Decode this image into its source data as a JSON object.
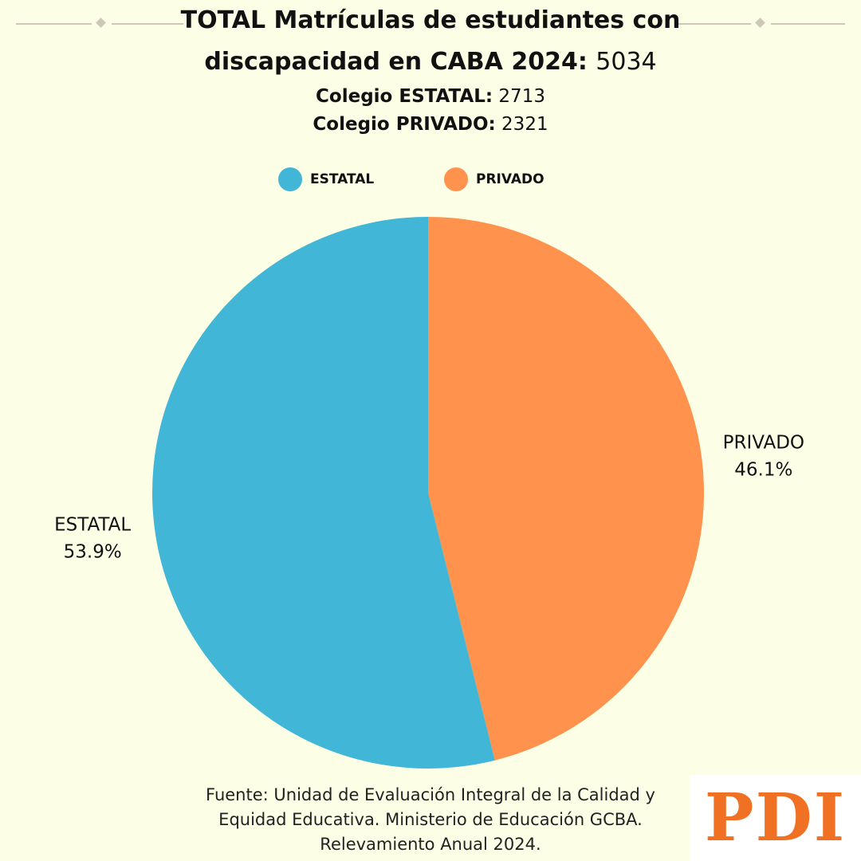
{
  "title": {
    "line1": "TOTAL Matrículas de estudiantes con",
    "line2_bold": "discapacidad en CABA 2024:",
    "total": "5034"
  },
  "subtitles": {
    "estatal_label": "Colegio ESTATAL:",
    "estatal_value": "2713",
    "privado_label": "Colegio PRIVADO:",
    "privado_value": "2321"
  },
  "legend": [
    {
      "label": "ESTATAL",
      "color": "#42b6d6"
    },
    {
      "label": "PRIVADO",
      "color": "#ff924c"
    }
  ],
  "chart_data": {
    "type": "pie",
    "title": "TOTAL Matrículas de estudiantes con discapacidad en CABA 2024: 5034",
    "slices": [
      {
        "label": "PRIVADO",
        "value": 2321,
        "percent_label": "46.1%",
        "color": "#ff924c"
      },
      {
        "label": "ESTATAL",
        "value": 2713,
        "percent_label": "53.9%",
        "color": "#42b6d6"
      }
    ],
    "start_angle": "12 o'clock",
    "direction": "clockwise",
    "legend_position": "top"
  },
  "footer": {
    "line1": "Fuente: Unidad de Evaluación Integral de la Calidad y",
    "line2": "Equidad Educativa. Ministerio de Educación GCBA.",
    "line3": "Relevamiento Anual 2024."
  },
  "logo": {
    "text": "PDI"
  }
}
